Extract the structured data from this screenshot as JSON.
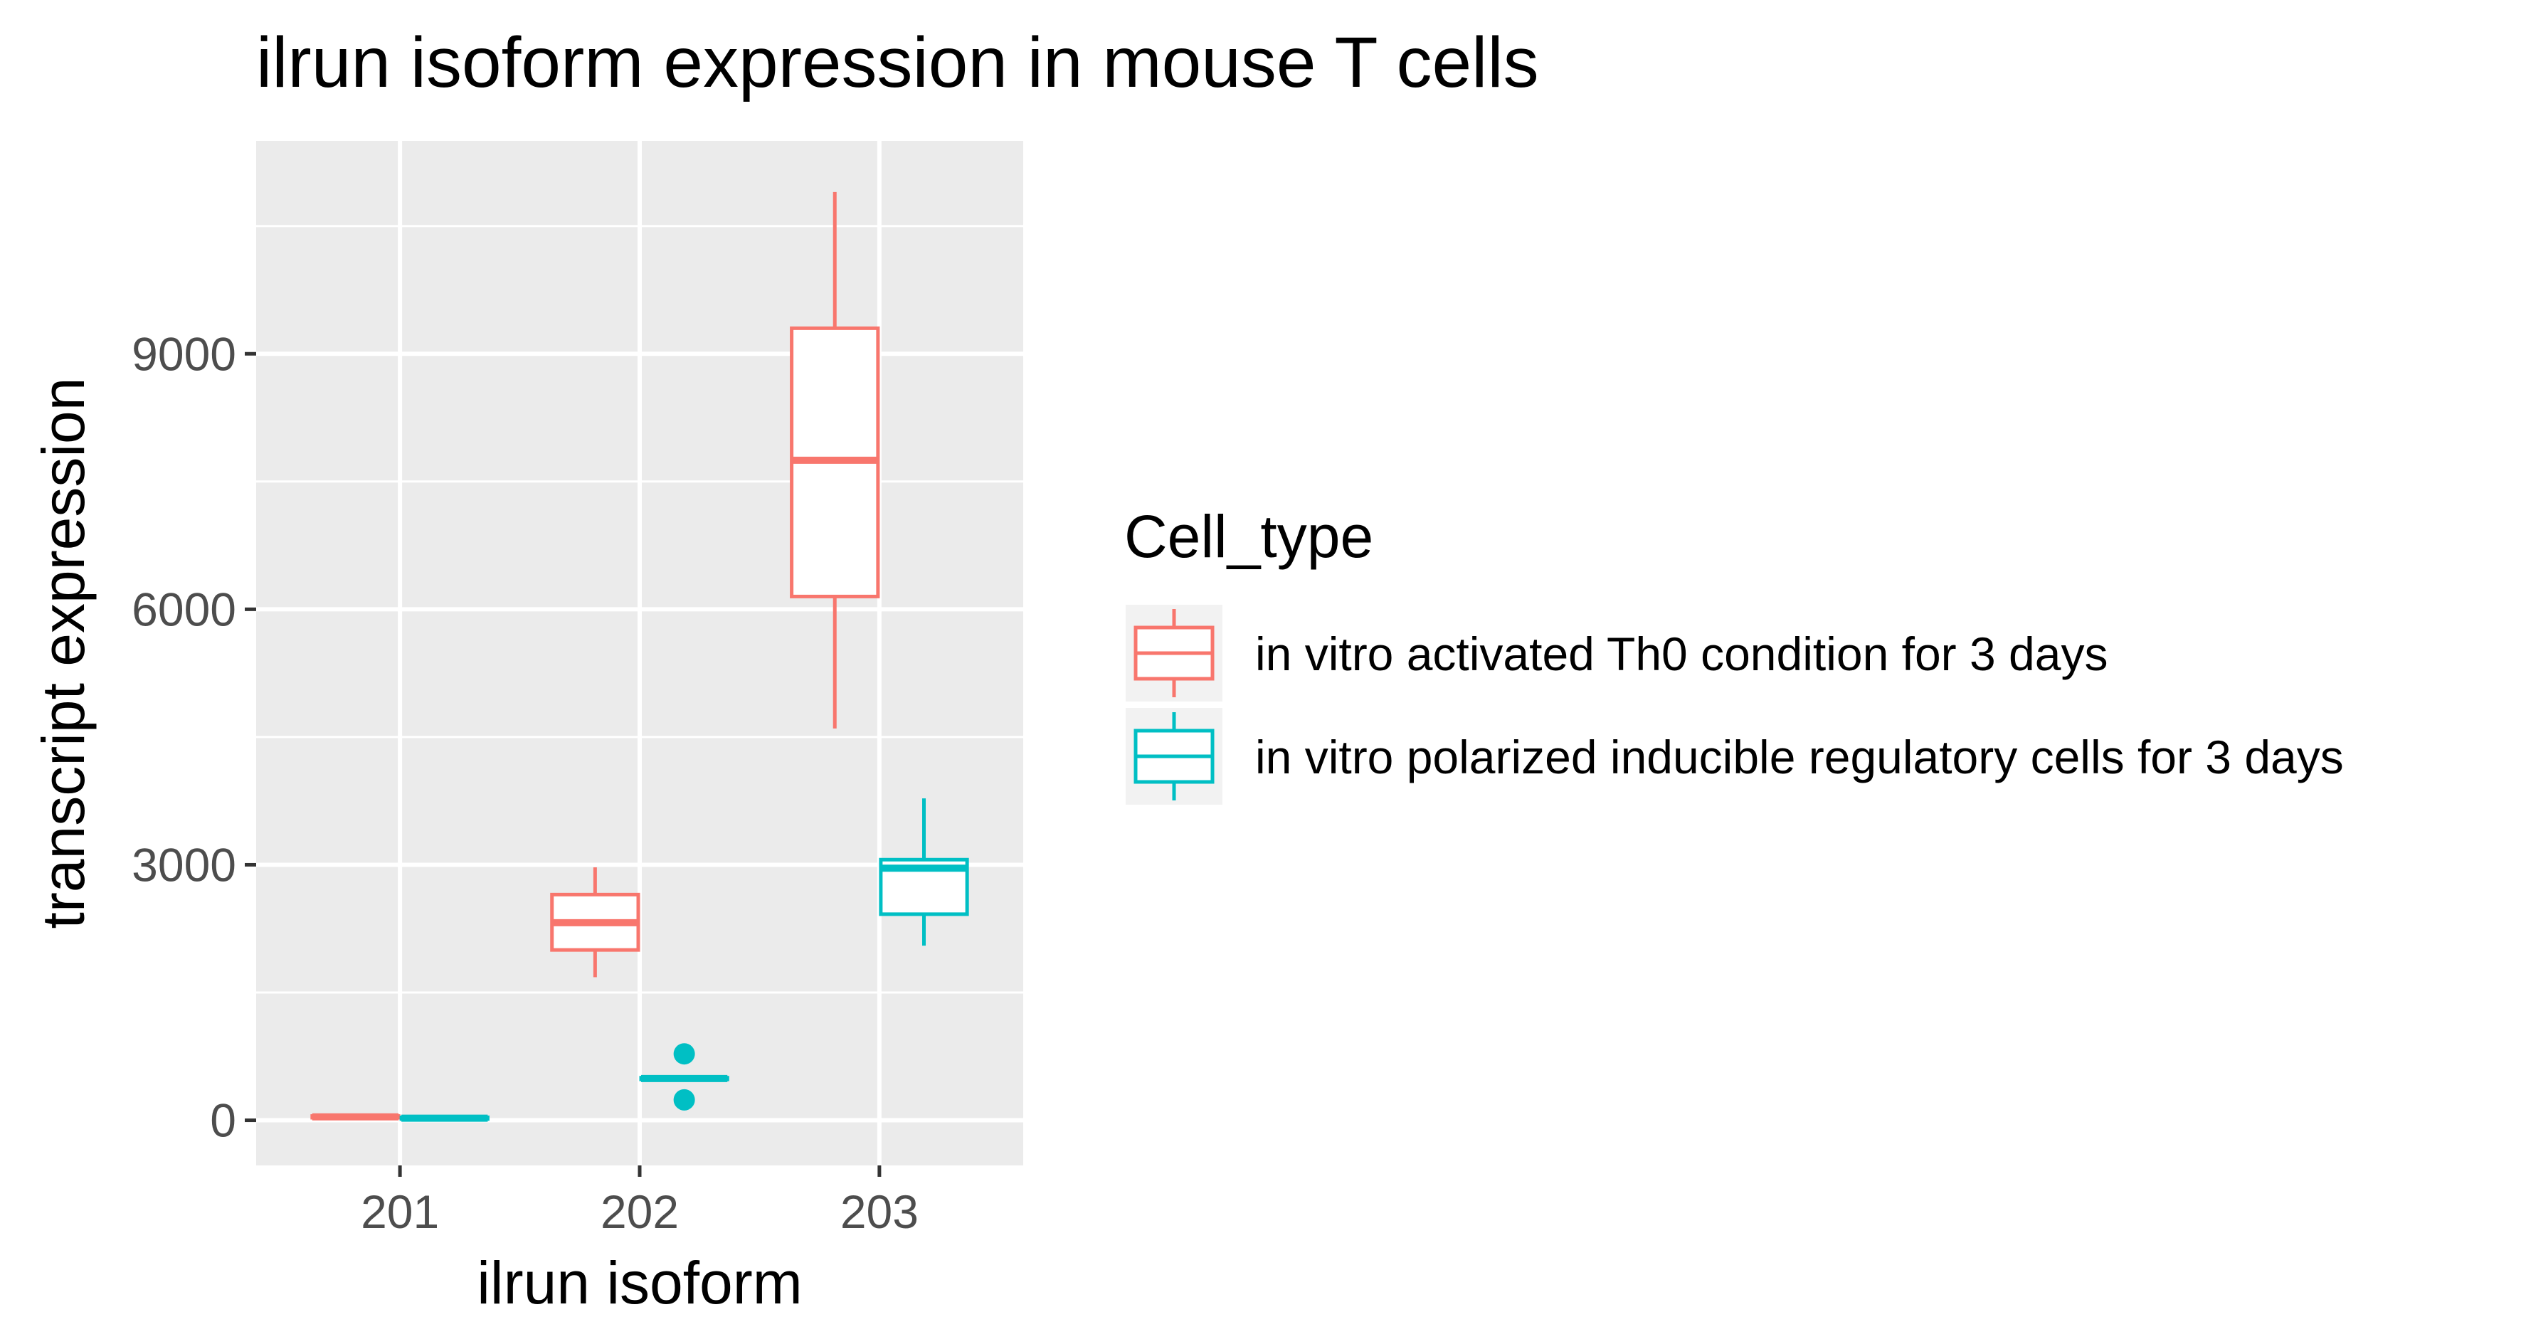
{
  "chart_data": {
    "type": "box",
    "title": "ilrun isoform expression in mouse T cells",
    "xlabel": "ilrun isoform",
    "ylabel": "transcript expression",
    "categories": [
      "201",
      "202",
      "203"
    ],
    "y_ticks": [
      0,
      3000,
      6000,
      9000
    ],
    "ylim": [
      -530,
      11500
    ],
    "grid": true,
    "legend": {
      "title": "Cell_type",
      "placement": "right"
    },
    "series": [
      {
        "name": "in vitro activated Th0 condition for 3 days",
        "color": "#F8766D",
        "boxes": [
          {
            "category": "201",
            "min": 30,
            "q1": 30,
            "median": 40,
            "q3": 50,
            "max": 60,
            "outliers": []
          },
          {
            "category": "202",
            "min": 1680,
            "q1": 2000,
            "median": 2320,
            "q3": 2650,
            "max": 2970,
            "outliers": []
          },
          {
            "category": "203",
            "min": 4600,
            "q1": 6150,
            "median": 7750,
            "q3": 9300,
            "max": 10900,
            "outliers": []
          }
        ]
      },
      {
        "name": "in vitro polarized inducible regulatory cells for 3 days",
        "color": "#00BFC4",
        "boxes": [
          {
            "category": "201",
            "min": 10,
            "q1": 15,
            "median": 25,
            "q3": 35,
            "max": 40,
            "outliers": []
          },
          {
            "category": "202",
            "min": 480,
            "q1": 480,
            "median": 490,
            "q3": 500,
            "max": 500,
            "outliers": [
              780,
              240
            ]
          },
          {
            "category": "203",
            "min": 2050,
            "q1": 2420,
            "median": 2960,
            "q3": 3060,
            "max": 3780,
            "outliers": []
          }
        ]
      }
    ]
  }
}
